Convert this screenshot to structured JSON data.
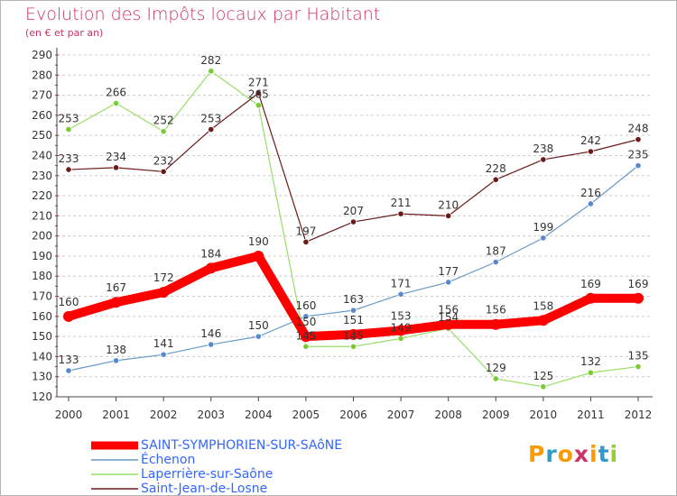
{
  "header": {
    "title": "Evolution des Impôts locaux par Habitant",
    "subtitle": "(en € et par an)"
  },
  "logo": {
    "text": "Proxiti",
    "letter_colors": [
      "#ff9900",
      "#3399cc",
      "#ff9900",
      "#cc3366",
      "#ff9900",
      "#3399cc",
      "#99cc33"
    ]
  },
  "chart_data": {
    "type": "line",
    "title": "Evolution des Impôts locaux par Habitant",
    "subtitle": "(en € et par an)",
    "xlabel": "",
    "ylabel": "",
    "x": [
      "2000",
      "2001",
      "2002",
      "2003",
      "2004",
      "2005",
      "2006",
      "2007",
      "2008",
      "2009",
      "2010",
      "2011",
      "2012"
    ],
    "ylim": [
      120,
      290
    ],
    "yticks": [
      120,
      130,
      140,
      150,
      160,
      170,
      180,
      190,
      200,
      210,
      220,
      230,
      240,
      250,
      260,
      270,
      280,
      290
    ],
    "grid": "horizontal dashed",
    "legend_position": "bottom-left",
    "series": [
      {
        "name": "SAINT-SYMPHORIEN-SUR-SAôNE",
        "color": "#ff0000",
        "marker_color": "#ff0000",
        "emphasis": "thick",
        "values": [
          160,
          167,
          172,
          184,
          190,
          150,
          151,
          153,
          156,
          156,
          158,
          169,
          169
        ]
      },
      {
        "name": "Échenon",
        "color": "#6699cc",
        "marker_color": "#5588cc",
        "emphasis": "thin",
        "values": [
          133,
          138,
          141,
          146,
          150,
          160,
          163,
          171,
          177,
          187,
          199,
          216,
          235
        ]
      },
      {
        "name": "Laperrière-sur-Saône",
        "color": "#99dd66",
        "marker_color": "#77cc33",
        "emphasis": "thin",
        "values": [
          253,
          266,
          252,
          282,
          265,
          145,
          145,
          149,
          154,
          129,
          125,
          132,
          135
        ]
      },
      {
        "name": "Saint-Jean-de-Losne",
        "color": "#6b1a1a",
        "marker_color": "#6b1a1a",
        "emphasis": "thin",
        "values": [
          233,
          234,
          232,
          253,
          271,
          197,
          207,
          211,
          210,
          228,
          238,
          242,
          248
        ]
      }
    ]
  }
}
